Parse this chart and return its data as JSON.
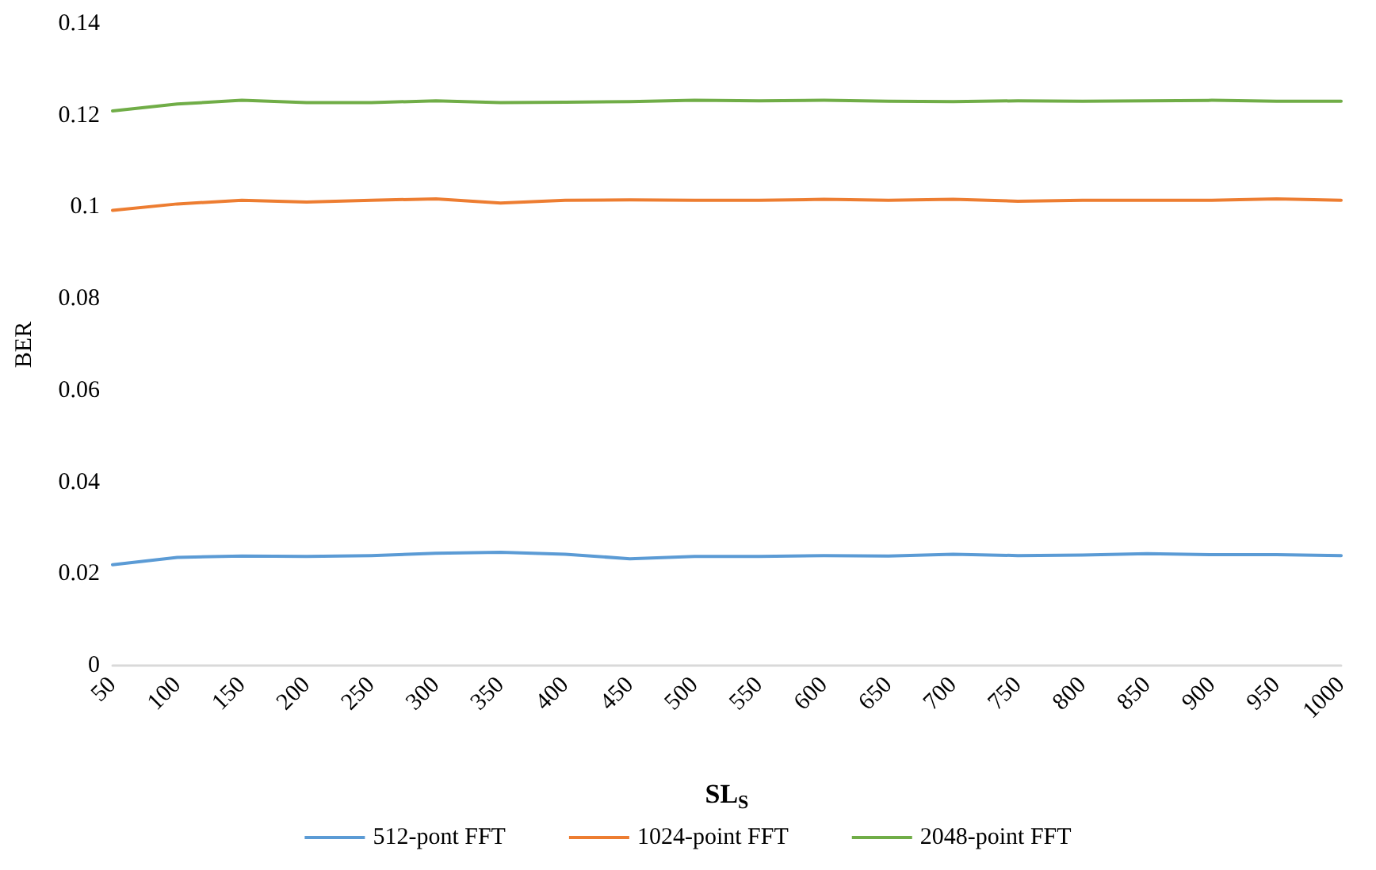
{
  "chart_data": {
    "type": "line",
    "xlabel": "SL$_{S}$",
    "ylabel": "BER",
    "categories": [
      "50",
      "100",
      "150",
      "200",
      "250",
      "300",
      "350",
      "400",
      "450",
      "500",
      "550",
      "600",
      "650",
      "700",
      "750",
      "800",
      "850",
      "900",
      "950",
      "1000"
    ],
    "series": [
      {
        "name": "512-pont FFT",
        "color": "#5b9bd5",
        "values": [
          0.022,
          0.0236,
          0.0239,
          0.0238,
          0.024,
          0.0245,
          0.0247,
          0.0243,
          0.0233,
          0.0238,
          0.0238,
          0.024,
          0.0239,
          0.0243,
          0.024,
          0.0241,
          0.0244,
          0.0242,
          0.0242,
          0.024
        ]
      },
      {
        "name": "1024-point FFT",
        "color": "#ed7d31",
        "values": [
          0.0993,
          0.1007,
          0.1015,
          0.1011,
          0.1015,
          0.1018,
          0.1009,
          0.1015,
          0.1016,
          0.1015,
          0.1015,
          0.1017,
          0.1015,
          0.1017,
          0.1013,
          0.1015,
          0.1015,
          0.1015,
          0.1018,
          0.1015
        ]
      },
      {
        "name": "2048-point FFT",
        "color": "#70ad47",
        "values": [
          0.121,
          0.1225,
          0.1233,
          0.1228,
          0.1228,
          0.1232,
          0.1228,
          0.1229,
          0.123,
          0.1233,
          0.1232,
          0.1233,
          0.1231,
          0.123,
          0.1232,
          0.1231,
          0.1232,
          0.1233,
          0.1231,
          0.1231
        ]
      }
    ],
    "ylim": [
      0,
      0.14
    ],
    "yticks": [
      0,
      0.02,
      0.04,
      0.06,
      0.08,
      0.1,
      0.12,
      0.14
    ],
    "grid": false,
    "legend": "bottom",
    "marker": "none",
    "line_style": "solid"
  }
}
